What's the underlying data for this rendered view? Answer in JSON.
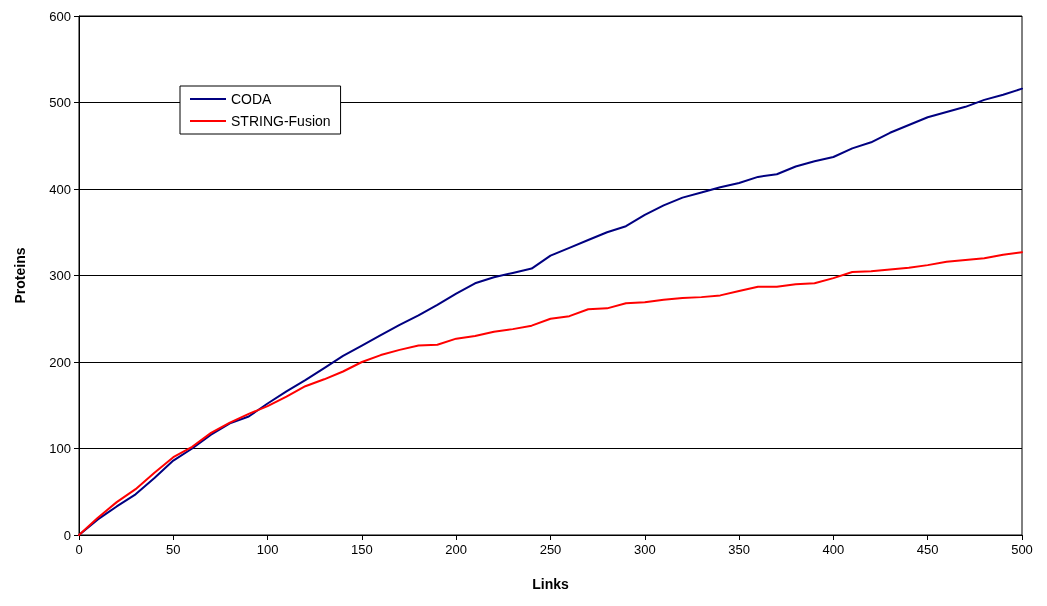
{
  "chart_data": {
    "type": "line",
    "xlabel": "Links",
    "ylabel": "Proteins",
    "x": [
      0,
      10,
      20,
      30,
      40,
      50,
      60,
      70,
      80,
      90,
      100,
      110,
      120,
      130,
      140,
      150,
      160,
      170,
      180,
      190,
      200,
      210,
      220,
      230,
      240,
      250,
      260,
      270,
      280,
      290,
      300,
      310,
      320,
      330,
      340,
      350,
      360,
      370,
      380,
      390,
      400,
      410,
      420,
      430,
      440,
      450,
      460,
      470,
      480,
      490,
      500
    ],
    "series": [
      {
        "name": "CODA",
        "color": "#000080",
        "values": [
          0,
          18,
          33,
          47,
          66,
          86,
          100,
          116,
          129,
          137,
          152,
          166,
          179,
          193,
          207,
          219,
          231,
          243,
          254,
          266,
          279,
          291,
          298,
          303,
          308,
          323,
          332,
          341,
          350,
          357,
          370,
          381,
          390,
          396,
          402,
          407,
          414,
          417,
          426,
          432,
          437,
          447,
          454,
          465,
          474,
          483,
          489,
          495,
          503,
          509,
          516
        ]
      },
      {
        "name": "STRING-Fusion",
        "color": "#ff0000",
        "values": [
          0,
          20,
          38,
          53,
          72,
          90,
          102,
          118,
          130,
          140,
          149,
          160,
          172,
          180,
          189,
          200,
          208,
          214,
          219,
          220,
          227,
          230,
          235,
          238,
          242,
          250,
          253,
          261,
          262,
          268,
          269,
          272,
          274,
          275,
          277,
          282,
          287,
          287,
          290,
          291,
          297,
          304,
          305,
          307,
          309,
          312,
          316,
          318,
          320,
          324,
          327
        ]
      }
    ],
    "xlim": [
      0,
      500
    ],
    "xticks": [
      0,
      50,
      100,
      150,
      200,
      250,
      300,
      350,
      400,
      450,
      500
    ],
    "ylim": [
      0,
      600
    ],
    "yticks": [
      0,
      100,
      200,
      300,
      400,
      500,
      600
    ],
    "grid": "y",
    "legend": "top left",
    "marker": "none",
    "line_style": "solid"
  }
}
